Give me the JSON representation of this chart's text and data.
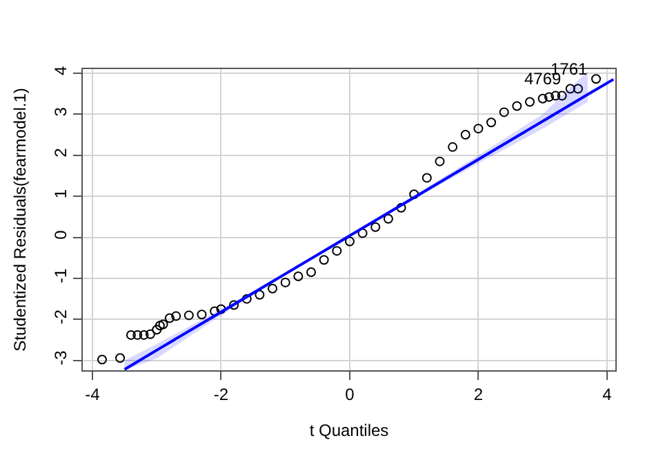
{
  "chart_data": {
    "type": "scatter",
    "xlabel": "t Quantiles",
    "ylabel": "Studentized Residuals(fearmodel.1)",
    "xlim": [
      -4.15,
      4.13
    ],
    "ylim": [
      -3.24,
      4.1
    ],
    "xticks": [
      -4,
      -2,
      0,
      2,
      4
    ],
    "yticks": [
      -3,
      -2,
      -1,
      0,
      1,
      2,
      3,
      4
    ],
    "grid": true,
    "legend": false,
    "x": [
      -3.85,
      -3.57,
      -3.4,
      -3.3,
      -3.2,
      -3.1,
      -3.0,
      -2.95,
      -2.9,
      -2.8,
      -2.7,
      -2.5,
      -2.3,
      -2.1,
      -2.0,
      -1.8,
      -1.6,
      -1.4,
      -1.2,
      -1.0,
      -0.8,
      -0.6,
      -0.4,
      -0.2,
      0,
      0.2,
      0.4,
      0.6,
      0.8,
      1.0,
      1.2,
      1.4,
      1.6,
      1.8,
      2.0,
      2.2,
      2.4,
      2.6,
      2.8,
      3.0,
      3.1,
      3.2,
      3.3,
      3.43,
      3.55,
      3.83
    ],
    "series": [
      {
        "marker": "circle",
        "color": "#000000",
        "values": [
          -2.98,
          -2.94,
          -2.38,
          -2.38,
          -2.38,
          -2.36,
          -2.25,
          -2.15,
          -2.12,
          -1.97,
          -1.92,
          -1.9,
          -1.88,
          -1.8,
          -1.75,
          -1.65,
          -1.5,
          -1.4,
          -1.25,
          -1.1,
          -0.95,
          -0.85,
          -0.55,
          -0.33,
          -0.1,
          0.1,
          0.25,
          0.45,
          0.72,
          1.05,
          1.45,
          1.85,
          2.2,
          2.5,
          2.65,
          2.8,
          3.05,
          3.2,
          3.3,
          3.38,
          3.42,
          3.45,
          3.45,
          3.62,
          3.62,
          3.86
        ]
      },
      {
        "type": "line",
        "marker": "none",
        "color": "#0000ff",
        "x": [
          -3.5,
          -3,
          -2,
          -1,
          0,
          1,
          2,
          3,
          3.7,
          4.1
        ],
        "values": [
          -3.22,
          -2.75,
          -1.82,
          -0.89,
          0.04,
          0.97,
          1.9,
          2.83,
          3.48,
          3.85
        ],
        "lower": [
          -3.24,
          -2.95,
          -1.9,
          -0.93,
          0.0,
          0.93,
          1.8,
          2.65,
          3.3,
          null
        ],
        "upper": [
          -3.0,
          -2.6,
          -1.75,
          -0.85,
          0.08,
          1.02,
          2.0,
          3.0,
          4.05,
          null
        ]
      }
    ],
    "annotations": [
      {
        "text": "1761",
        "x": 3.83,
        "y": 3.86
      },
      {
        "text": "4769",
        "x": 3.43,
        "y": 3.62
      }
    ]
  }
}
